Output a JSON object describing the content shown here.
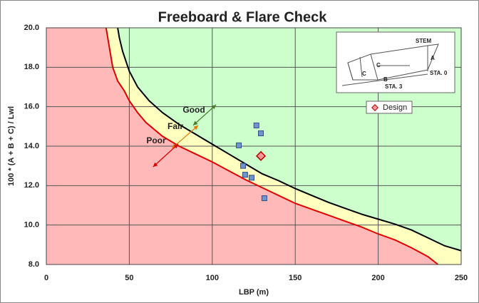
{
  "chart_data": {
    "type": "scatter",
    "title": "Freeboard & Flare Check",
    "xlabel": "LBP (m)",
    "ylabel": "100 * (A + B + C) / Lwl",
    "xlim": [
      0,
      250
    ],
    "ylim": [
      8,
      20
    ],
    "xticks": [
      0,
      50,
      100,
      150,
      200,
      250
    ],
    "yticks": [
      {
        "value": 8,
        "label": "8.0"
      },
      {
        "value": 10,
        "label": "10.0"
      },
      {
        "value": 12,
        "label": "12.0"
      },
      {
        "value": 14,
        "label": "14.0"
      },
      {
        "value": 16,
        "label": "16.0"
      },
      {
        "value": 18,
        "label": "18.0"
      },
      {
        "value": 20,
        "label": "20.0"
      }
    ],
    "grid": true,
    "legend": "upper right",
    "background_color": "#ccffcc",
    "curves": [
      {
        "color": "#000000",
        "fill": "#ffffc0",
        "x": [
          43,
          44,
          46,
          50,
          55,
          62,
          70,
          80,
          90,
          100,
          110,
          120,
          130,
          140,
          150,
          160,
          170,
          180,
          190,
          200,
          210,
          220,
          230,
          240,
          250
        ],
        "y": [
          20,
          19.5,
          18.8,
          17.8,
          17.0,
          16.3,
          15.7,
          15.1,
          14.6,
          14.1,
          13.6,
          13.1,
          12.6,
          12.25,
          11.85,
          11.5,
          11.15,
          10.85,
          10.55,
          10.3,
          10.05,
          9.75,
          9.35,
          8.95,
          8.7
        ]
      },
      {
        "color": "#e00000",
        "fill": "#ffb9b9",
        "x": [
          36,
          38,
          40,
          43,
          47,
          50,
          55,
          60,
          70,
          80,
          90,
          100,
          110,
          120,
          130,
          140,
          150,
          160,
          170,
          180,
          190,
          200,
          210,
          220,
          230,
          236
        ],
        "y": [
          20,
          19,
          18,
          17.3,
          16.8,
          16.3,
          15.7,
          15.2,
          14.5,
          14.0,
          13.6,
          13.2,
          12.75,
          12.3,
          11.9,
          11.5,
          11.1,
          10.8,
          10.5,
          10.2,
          9.9,
          9.55,
          9.25,
          8.85,
          8.4,
          8.0
        ]
      }
    ],
    "series": [
      {
        "color": "#7094cc",
        "marker": "square",
        "x": [
          116,
          126.6,
          129.3,
          118.6,
          119.8,
          123.7,
          131.4
        ],
        "y": [
          14.04,
          15.05,
          14.65,
          13.0,
          12.55,
          12.4,
          11.36
        ]
      },
      {
        "name": "Design",
        "color": "#ff9999",
        "marker": "diamond",
        "x": [
          129.3
        ],
        "y": [
          13.5
        ]
      }
    ],
    "annotations": [
      {
        "text": "Good",
        "color": "#4a7a2a"
      },
      {
        "text": "Fair",
        "color": "#e07b00"
      },
      {
        "text": "Poor",
        "color": "#e00000"
      }
    ],
    "inset": {
      "labels": [
        "STEM",
        "A",
        "C",
        "C",
        "B",
        "STA. 0",
        "STA. 3"
      ]
    }
  }
}
